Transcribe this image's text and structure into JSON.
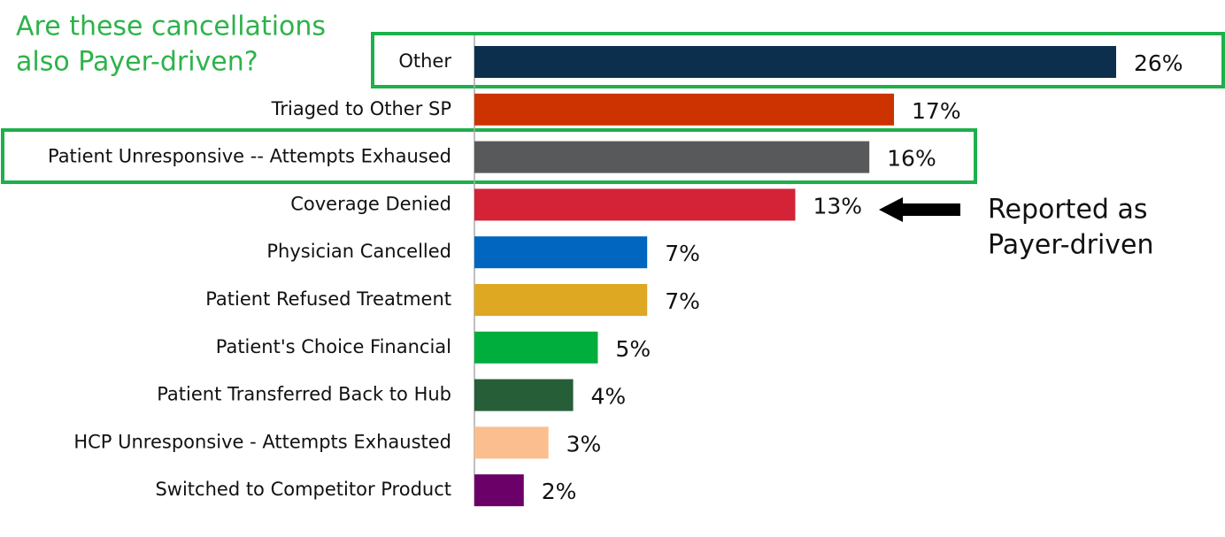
{
  "chart_data": {
    "type": "bar",
    "orientation": "horizontal",
    "categories": [
      "Other",
      "Triaged to Other SP",
      "Patient Unresponsive -- Attempts Exhaused",
      "Coverage Denied",
      "Physician Cancelled",
      "Patient Refused Treatment",
      "Patient's Choice Financial",
      "Patient Transferred Back to Hub",
      "HCP Unresponsive - Attempts Exhausted",
      "Switched to Competitor Product"
    ],
    "values": [
      26,
      17,
      16,
      13,
      7,
      7,
      5,
      4,
      3,
      2
    ],
    "value_labels": [
      "26%",
      "17%",
      "16%",
      "13%",
      "7%",
      "7%",
      "5%",
      "4%",
      "3%",
      "2%"
    ],
    "colors": [
      "#0b2f4d",
      "#cc3300",
      "#58595b",
      "#d42236",
      "#0066c0",
      "#dea823",
      "#00ae3e",
      "#255e37",
      "#fbbe8f",
      "#6c0069"
    ],
    "annotations": [
      {
        "lines": [
          "Are these cancellations",
          "also Payer-driven?"
        ]
      },
      {
        "lines": [
          "Reported as",
          "Payer-driven"
        ]
      }
    ]
  }
}
